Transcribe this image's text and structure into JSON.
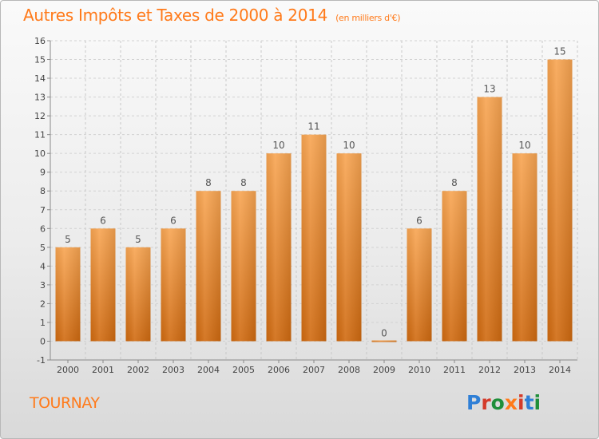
{
  "header": {
    "title": "Autres Impôts et Taxes de 2000 à 2014",
    "subtitle": "(en milliers d'€)"
  },
  "footer": {
    "commune": "TOURNAY",
    "logo": "Proxiti"
  },
  "colors": {
    "accent": "#ff7a1a",
    "bar_top": "#f8a552",
    "bar_bottom": "#d06a10",
    "logo_letters": [
      "#2f7fd6",
      "#d43b2a",
      "#1f8f3a",
      "#ff7a1a",
      "#d43b2a",
      "#2f7fd6",
      "#1f8f3a"
    ]
  },
  "chart_data": {
    "type": "bar",
    "categories": [
      "2000",
      "2001",
      "2002",
      "2003",
      "2004",
      "2005",
      "2006",
      "2007",
      "2008",
      "2009",
      "2010",
      "2011",
      "2012",
      "2013",
      "2014"
    ],
    "values": [
      5,
      6,
      5,
      6,
      8,
      8,
      10,
      11,
      10,
      0,
      6,
      8,
      13,
      10,
      15
    ],
    "data_labels": [
      "5",
      "6",
      "5",
      "6",
      "8",
      "8",
      "10",
      "11",
      "10",
      "0",
      "6",
      "8",
      "13",
      "10",
      "15"
    ],
    "ylim": [
      -1,
      16
    ],
    "yticks": [
      -1,
      0,
      1,
      2,
      3,
      4,
      5,
      6,
      7,
      8,
      9,
      10,
      11,
      12,
      13,
      14,
      15,
      16
    ],
    "ytick_labels": [
      "-1",
      "0",
      "1",
      "2",
      "3",
      "4",
      "5",
      "6",
      "7",
      "8",
      "9",
      "10",
      "11",
      "12",
      "13",
      "14",
      "15",
      "16"
    ],
    "grid": true
  }
}
